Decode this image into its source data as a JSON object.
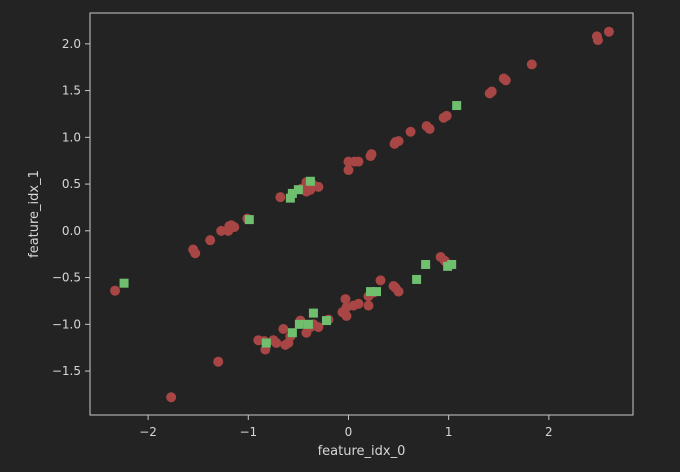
{
  "chart_data": {
    "type": "scatter",
    "xlabel": "feature_idx_0",
    "ylabel": "feature_idx_1",
    "xlim": [
      -2.58,
      2.84
    ],
    "ylim": [
      -1.97,
      2.33
    ],
    "xticks": [
      -2,
      -1,
      0,
      1,
      2
    ],
    "xtick_labels": [
      "−2",
      "−1",
      "0",
      "1",
      "2"
    ],
    "yticks": [
      -1.5,
      -1.0,
      -0.5,
      0.0,
      0.5,
      1.0,
      1.5,
      2.0
    ],
    "ytick_labels": [
      "−1.5",
      "−1.0",
      "−0.5",
      "0.0",
      "0.5",
      "1.0",
      "1.5",
      "2.0"
    ],
    "grid": false,
    "colors": {
      "background": "#232323",
      "axes": "#c8c8c8",
      "text": "#d6d6d6",
      "series_0": "#a84545",
      "series_1": "#6fbf6f"
    },
    "series": [
      {
        "marker": "circle",
        "color": "#a84545",
        "points": [
          [
            2.48,
            2.08
          ],
          [
            2.49,
            2.04
          ],
          [
            2.6,
            2.13
          ],
          [
            1.83,
            1.78
          ],
          [
            1.55,
            1.63
          ],
          [
            1.57,
            1.61
          ],
          [
            1.41,
            1.47
          ],
          [
            1.43,
            1.49
          ],
          [
            0.98,
            1.23
          ],
          [
            0.95,
            1.21
          ],
          [
            0.78,
            1.12
          ],
          [
            0.81,
            1.09
          ],
          [
            0.62,
            1.06
          ],
          [
            0.46,
            0.93
          ],
          [
            0.5,
            0.96
          ],
          [
            0.47,
            0.95
          ],
          [
            0.22,
            0.8
          ],
          [
            0.23,
            0.82
          ],
          [
            0.0,
            0.74
          ],
          [
            0.06,
            0.74
          ],
          [
            0.1,
            0.74
          ],
          [
            0.0,
            0.65
          ],
          [
            -0.42,
            0.52
          ],
          [
            -0.36,
            0.5
          ],
          [
            -0.3,
            0.47
          ],
          [
            -0.42,
            0.42
          ],
          [
            -0.38,
            0.44
          ],
          [
            -0.47,
            0.45
          ],
          [
            -0.68,
            0.36
          ],
          [
            -1.01,
            0.13
          ],
          [
            -1.17,
            0.06
          ],
          [
            -1.19,
            0.05
          ],
          [
            -1.14,
            0.04
          ],
          [
            -1.2,
            0.0
          ],
          [
            -1.27,
            0.0
          ],
          [
            -1.38,
            -0.1
          ],
          [
            -1.55,
            -0.2
          ],
          [
            -1.53,
            -0.24
          ],
          [
            -2.33,
            -0.64
          ],
          [
            0.92,
            -0.28
          ],
          [
            0.96,
            -0.32
          ],
          [
            0.32,
            -0.53
          ],
          [
            0.45,
            -0.59
          ],
          [
            0.47,
            -0.61
          ],
          [
            0.5,
            -0.65
          ],
          [
            0.25,
            -0.66
          ],
          [
            0.2,
            -0.7
          ],
          [
            0.1,
            -0.78
          ],
          [
            0.2,
            -0.8
          ],
          [
            0.05,
            -0.8
          ],
          [
            -0.03,
            -0.73
          ],
          [
            -0.02,
            -0.82
          ],
          [
            -0.06,
            -0.87
          ],
          [
            -0.02,
            -0.91
          ],
          [
            -0.2,
            -0.95
          ],
          [
            -0.48,
            -0.96
          ],
          [
            -0.35,
            -1.0
          ],
          [
            -0.38,
            -1.03
          ],
          [
            -0.3,
            -1.03
          ],
          [
            -0.42,
            -1.09
          ],
          [
            -0.65,
            -1.05
          ],
          [
            -0.58,
            -1.13
          ],
          [
            -0.75,
            -1.17
          ],
          [
            -0.72,
            -1.2
          ],
          [
            -0.6,
            -1.2
          ],
          [
            -0.84,
            -1.18
          ],
          [
            -0.9,
            -1.17
          ],
          [
            -0.83,
            -1.27
          ],
          [
            -0.63,
            -1.22
          ],
          [
            -1.3,
            -1.4
          ],
          [
            -1.77,
            -1.78
          ]
        ]
      },
      {
        "marker": "square",
        "color": "#6fbf6f",
        "points": [
          [
            1.08,
            1.34
          ],
          [
            -0.38,
            0.53
          ],
          [
            -0.5,
            0.44
          ],
          [
            -0.56,
            0.4
          ],
          [
            -0.58,
            0.35
          ],
          [
            -0.99,
            0.12
          ],
          [
            -2.24,
            -0.56
          ],
          [
            0.77,
            -0.36
          ],
          [
            0.99,
            -0.38
          ],
          [
            1.03,
            -0.36
          ],
          [
            0.68,
            -0.52
          ],
          [
            0.22,
            -0.65
          ],
          [
            0.28,
            -0.65
          ],
          [
            -0.35,
            -0.88
          ],
          [
            -0.22,
            -0.96
          ],
          [
            -0.49,
            -1.0
          ],
          [
            -0.4,
            -1.0
          ],
          [
            -0.56,
            -1.09
          ],
          [
            -0.82,
            -1.2
          ]
        ]
      }
    ]
  }
}
